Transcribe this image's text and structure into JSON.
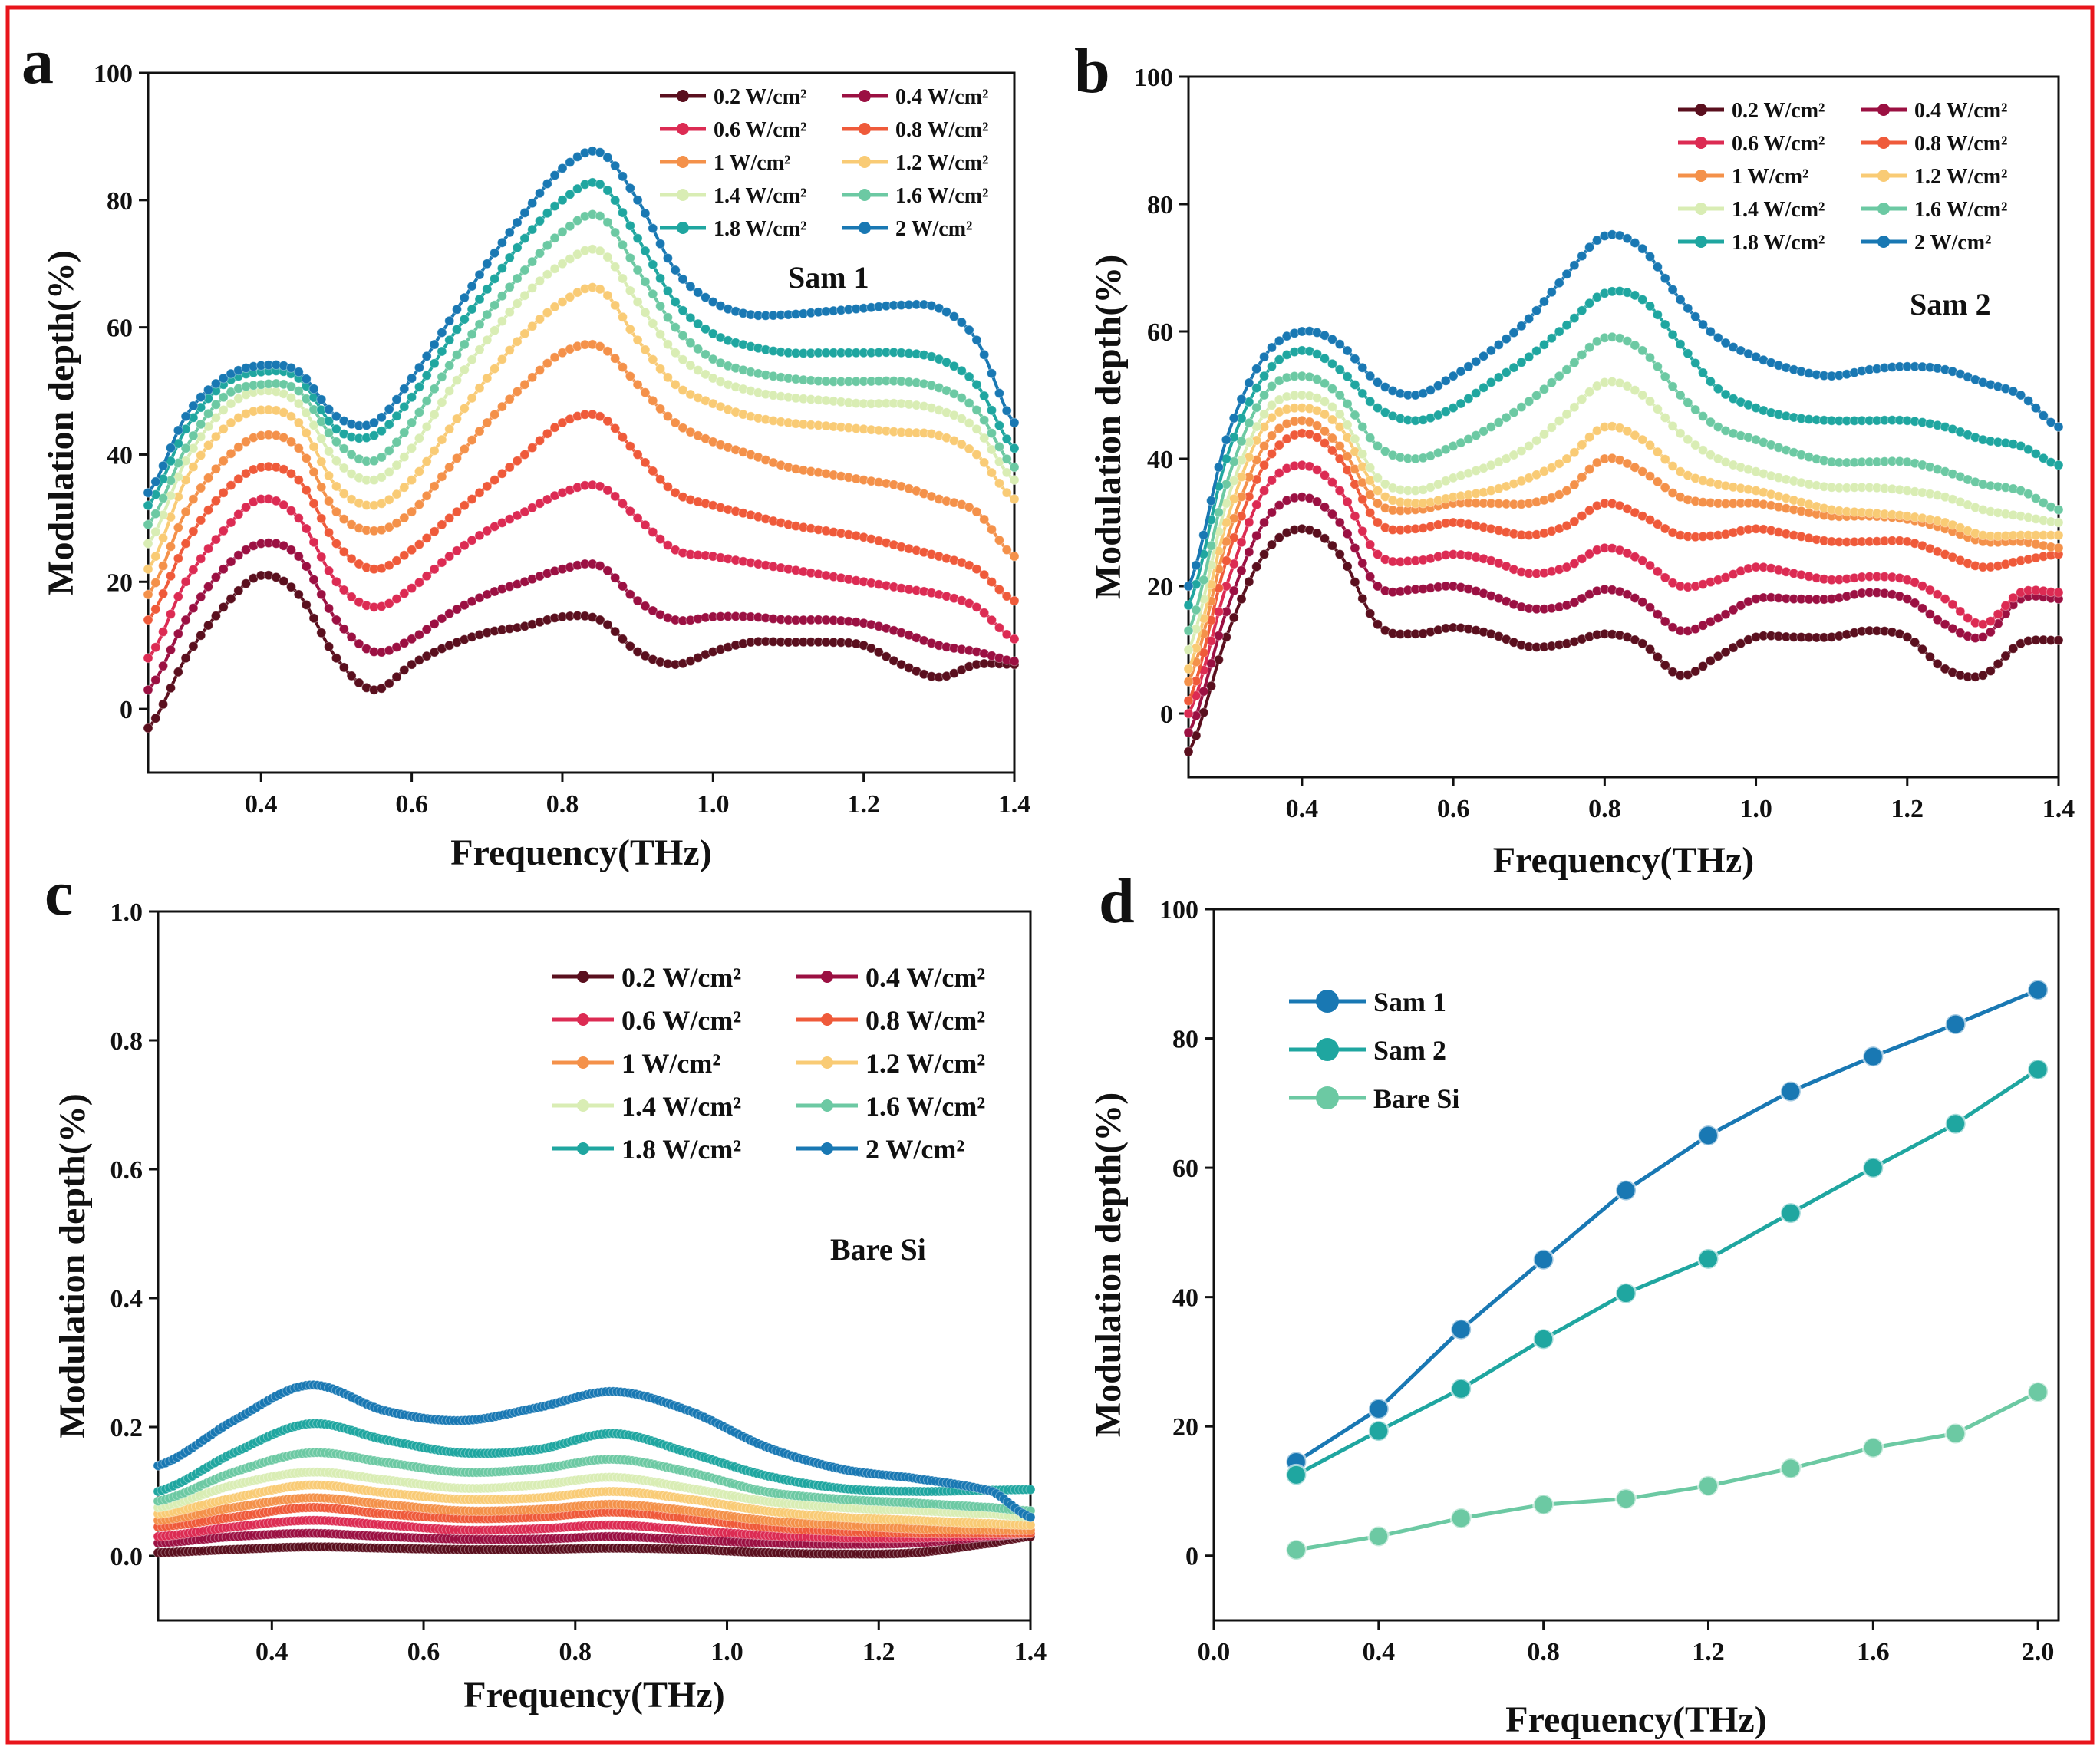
{
  "figure": {
    "border_color": "#e8141b"
  },
  "chart_data": [
    {
      "panel": "a",
      "type": "line",
      "annotation": "Sam 1",
      "xlabel": "Frequency(THz)",
      "ylabel": "Modulation depth(%)",
      "xlim": [
        0.25,
        1.4
      ],
      "ylim": [
        -10,
        100
      ],
      "xticks": [
        "0.4",
        "0.6",
        "0.8",
        "1.0",
        "1.2",
        "1.4"
      ],
      "yticks": [
        "0",
        "20",
        "40",
        "60",
        "80",
        "100"
      ],
      "legend": {
        "placement": "top-right",
        "columns": 2
      },
      "x_knots": [
        0.25,
        0.3,
        0.35,
        0.4,
        0.45,
        0.5,
        0.55,
        0.6,
        0.65,
        0.7,
        0.75,
        0.8,
        0.85,
        0.9,
        0.95,
        1.0,
        1.05,
        1.1,
        1.15,
        1.2,
        1.25,
        1.3,
        1.35,
        1.4
      ],
      "series": [
        {
          "name": "0.2 W/cm²",
          "color": "#5a0f1e",
          "values": [
            -3,
            8,
            16,
            21,
            18,
            8,
            3,
            7,
            10,
            12,
            13,
            14.5,
            14,
            9,
            7,
            9,
            10.5,
            10.5,
            10.5,
            10,
            7,
            5,
            7,
            7
          ]
        },
        {
          "name": "0.4 W/cm²",
          "color": "#9b1042",
          "values": [
            3,
            14,
            22,
            26,
            24,
            14,
            9,
            11,
            15,
            18,
            20,
            22,
            22.5,
            17,
            14,
            14.5,
            14.5,
            14,
            14,
            13.5,
            12,
            10,
            9,
            7.5
          ]
        },
        {
          "name": "0.6 W/cm²",
          "color": "#dc2b53",
          "values": [
            8,
            20,
            28,
            33,
            30,
            20,
            16,
            19,
            24,
            28,
            31,
            34,
            35,
            30,
            25,
            24,
            23,
            22,
            21,
            20,
            19,
            18,
            16,
            11
          ]
        },
        {
          "name": "0.8 W/cm²",
          "color": "#ef5a3a",
          "values": [
            14,
            26,
            34,
            38,
            36,
            26,
            22,
            25,
            30,
            35,
            40,
            45,
            46,
            40,
            34,
            32,
            30.5,
            29,
            28,
            27,
            25.5,
            24,
            22,
            17
          ]
        },
        {
          "name": "1 W/cm²",
          "color": "#f4914a",
          "values": [
            18,
            31,
            39,
            43,
            41,
            31,
            28,
            31,
            38,
            45,
            51,
            56,
            57,
            51,
            45,
            42,
            40,
            38,
            37,
            36,
            35,
            33,
            31,
            24
          ]
        },
        {
          "name": "1.2 W/cm²",
          "color": "#f9cb75",
          "values": [
            22,
            36,
            44,
            47,
            45,
            35,
            32,
            36,
            44,
            52,
            59,
            64,
            66,
            58,
            51,
            48,
            46,
            45,
            44.5,
            44,
            43.5,
            43,
            40,
            33
          ]
        },
        {
          "name": "1.4 W/cm²",
          "color": "#d9edb4",
          "values": [
            26,
            39,
            47,
            50,
            48,
            39,
            36,
            41,
            50,
            58,
            65,
            70,
            72,
            64,
            56,
            52,
            50,
            49,
            48.5,
            48,
            48,
            47,
            44,
            36
          ]
        },
        {
          "name": "1.6 W/cm²",
          "color": "#6cc9a3",
          "values": [
            29,
            41,
            49,
            51,
            50,
            42,
            39,
            45,
            54,
            62,
            69,
            75,
            77.5,
            69,
            60,
            55,
            53,
            52,
            51.5,
            51.5,
            51.5,
            50.5,
            47,
            38
          ]
        },
        {
          "name": "1.8 W/cm²",
          "color": "#1fa6a0",
          "values": [
            32,
            44,
            51,
            53,
            52,
            44,
            43,
            49,
            58,
            66,
            74,
            80,
            82.5,
            74,
            64,
            59,
            57,
            56,
            56,
            56,
            56,
            55,
            51,
            41
          ]
        },
        {
          "name": "2 W/cm²",
          "color": "#1978b3",
          "values": [
            34,
            46,
            52,
            54,
            53,
            46,
            45,
            52,
            61,
            70,
            78,
            85,
            87.5,
            80,
            69,
            64,
            62,
            62,
            62.5,
            63,
            63.5,
            63,
            58,
            45
          ]
        }
      ]
    },
    {
      "panel": "b",
      "type": "line",
      "annotation": "Sam 2",
      "xlabel": "Frequency(THz)",
      "ylabel": "Modulation depth(%)",
      "xlim": [
        0.25,
        1.4
      ],
      "ylim": [
        -10,
        100
      ],
      "xticks": [
        "0.4",
        "0.6",
        "0.8",
        "1.0",
        "1.2",
        "1.4"
      ],
      "yticks": [
        "0",
        "20",
        "40",
        "60",
        "80",
        "100"
      ],
      "legend": {
        "placement": "top-right",
        "columns": 2
      },
      "x_knots": [
        0.25,
        0.3,
        0.35,
        0.4,
        0.45,
        0.5,
        0.55,
        0.6,
        0.65,
        0.7,
        0.75,
        0.8,
        0.85,
        0.9,
        0.95,
        1.0,
        1.05,
        1.1,
        1.15,
        1.2,
        1.25,
        1.3,
        1.35,
        1.4
      ],
      "series": [
        {
          "name": "0.2 W/cm²",
          "color": "#5a0f1e",
          "values": [
            -6,
            12,
            25,
            29,
            25,
            14,
            12.5,
            13.5,
            12.5,
            10.5,
            11,
            12.5,
            11,
            6,
            9,
            12,
            12,
            12,
            13,
            12,
            7,
            6,
            11,
            11.5
          ]
        },
        {
          "name": "0.4 W/cm²",
          "color": "#9b1042",
          "values": [
            -3,
            16,
            30,
            34,
            30,
            20,
            19.5,
            20,
            18.5,
            16.5,
            17,
            19.5,
            17.5,
            13,
            15,
            18,
            18,
            18,
            19,
            18,
            14,
            12,
            18,
            18
          ]
        },
        {
          "name": "0.6 W/cm²",
          "color": "#dc2b53",
          "values": [
            0,
            20,
            35,
            39,
            35,
            25,
            24,
            25,
            24,
            22,
            23,
            26,
            24,
            20,
            21,
            23,
            22,
            21,
            21.5,
            21,
            18,
            14,
            19,
            19
          ]
        },
        {
          "name": "0.8 W/cm²",
          "color": "#ef5a3a",
          "values": [
            2,
            24,
            39,
            44,
            40,
            30,
            29,
            30,
            29,
            28,
            29.5,
            33,
            31,
            28,
            28,
            29,
            28,
            27,
            27,
            27,
            25,
            23,
            24,
            25
          ]
        },
        {
          "name": "1 W/cm²",
          "color": "#f4914a",
          "values": [
            5,
            27,
            42,
            46,
            42,
            33,
            32,
            33,
            33,
            33,
            35,
            40,
            38,
            34,
            33,
            33,
            32,
            31,
            31,
            30.5,
            29,
            27,
            27,
            26
          ]
        },
        {
          "name": "1.2 W/cm²",
          "color": "#f9cb75",
          "values": [
            7,
            30,
            45,
            48,
            45,
            35,
            33,
            34,
            35,
            37,
            40,
            45,
            43,
            38,
            36,
            35,
            33.5,
            32,
            31.5,
            31,
            30,
            28,
            28,
            28
          ]
        },
        {
          "name": "1.4 W/cm²",
          "color": "#d9edb4",
          "values": [
            10,
            33,
            47,
            50,
            47,
            37,
            35,
            37,
            39,
            42,
            47,
            52,
            50,
            44,
            40,
            38,
            36.5,
            35.5,
            35.5,
            35,
            34,
            32,
            31,
            30
          ]
        },
        {
          "name": "1.6 W/cm²",
          "color": "#6cc9a3",
          "values": [
            13,
            36,
            50,
            53,
            50,
            42,
            40,
            42,
            45,
            49,
            54,
            59,
            57,
            50,
            45,
            43,
            41,
            39.5,
            39.5,
            39.5,
            38,
            36,
            35,
            32
          ]
        },
        {
          "name": "1.8 W/cm²",
          "color": "#1fa6a0",
          "values": [
            17,
            40,
            53,
            57,
            54,
            48,
            46,
            48,
            52,
            56,
            61,
            66,
            65,
            58,
            51,
            48,
            46.5,
            46,
            46,
            46,
            45,
            43,
            42,
            39
          ]
        },
        {
          "name": "2 W/cm²",
          "color": "#1978b3",
          "values": [
            20,
            43,
            56,
            60,
            58,
            52,
            50,
            53,
            57,
            62,
            69,
            75,
            73,
            65,
            59,
            56,
            54,
            53,
            54,
            54.5,
            54,
            52,
            50,
            45
          ]
        }
      ]
    },
    {
      "panel": "c",
      "type": "line",
      "annotation": "Bare Si",
      "xlabel": "Frequency(THz)",
      "ylabel": "Modulation depth(%)",
      "xlim": [
        0.25,
        1.4
      ],
      "ylim": [
        -0.1,
        1.0
      ],
      "xticks": [
        "0.4",
        "0.6",
        "0.8",
        "1.0",
        "1.2",
        "1.4"
      ],
      "yticks": [
        "0.0",
        "0.2",
        "0.4",
        "0.6",
        "0.8",
        "1.0"
      ],
      "legend": {
        "placement": "top-right",
        "columns": 2
      },
      "x_knots": [
        0.25,
        0.35,
        0.45,
        0.55,
        0.65,
        0.75,
        0.85,
        0.95,
        1.05,
        1.15,
        1.25,
        1.35,
        1.4
      ],
      "series": [
        {
          "name": "0.2 W/cm²",
          "color": "#5a0f1e",
          "values": [
            0.005,
            0.01,
            0.014,
            0.012,
            0.01,
            0.01,
            0.012,
            0.01,
            0.005,
            0.003,
            0.005,
            0.02,
            0.03
          ]
        },
        {
          "name": "0.4 W/cm²",
          "color": "#9b1042",
          "values": [
            0.02,
            0.03,
            0.035,
            0.03,
            0.026,
            0.026,
            0.03,
            0.025,
            0.02,
            0.018,
            0.02,
            0.03,
            0.035
          ]
        },
        {
          "name": "0.6 W/cm²",
          "color": "#dc2b53",
          "values": [
            0.03,
            0.045,
            0.055,
            0.048,
            0.04,
            0.042,
            0.048,
            0.04,
            0.032,
            0.028,
            0.028,
            0.032,
            0.035
          ]
        },
        {
          "name": "0.8 W/cm²",
          "color": "#ef5a3a",
          "values": [
            0.045,
            0.06,
            0.075,
            0.065,
            0.058,
            0.06,
            0.068,
            0.058,
            0.045,
            0.038,
            0.035,
            0.035,
            0.035
          ]
        },
        {
          "name": "1 W/cm²",
          "color": "#f4914a",
          "values": [
            0.055,
            0.075,
            0.09,
            0.08,
            0.07,
            0.072,
            0.08,
            0.07,
            0.055,
            0.048,
            0.042,
            0.04,
            0.04
          ]
        },
        {
          "name": "1.2 W/cm²",
          "color": "#f9cb75",
          "values": [
            0.065,
            0.09,
            0.11,
            0.098,
            0.088,
            0.09,
            0.1,
            0.088,
            0.07,
            0.06,
            0.055,
            0.05,
            0.048
          ]
        },
        {
          "name": "1.4 W/cm²",
          "color": "#d9edb4",
          "values": [
            0.075,
            0.11,
            0.13,
            0.118,
            0.105,
            0.11,
            0.122,
            0.105,
            0.085,
            0.075,
            0.07,
            0.065,
            0.06
          ]
        },
        {
          "name": "1.6 W/cm²",
          "color": "#6cc9a3",
          "values": [
            0.085,
            0.13,
            0.16,
            0.145,
            0.13,
            0.135,
            0.15,
            0.13,
            0.1,
            0.088,
            0.082,
            0.075,
            0.07
          ]
        },
        {
          "name": "1.8 W/cm²",
          "color": "#1fa6a0",
          "values": [
            0.1,
            0.16,
            0.205,
            0.18,
            0.16,
            0.165,
            0.19,
            0.16,
            0.125,
            0.105,
            0.1,
            0.102,
            0.103
          ]
        },
        {
          "name": "2 W/cm²",
          "color": "#1978b3",
          "values": [
            0.14,
            0.21,
            0.265,
            0.225,
            0.21,
            0.23,
            0.255,
            0.225,
            0.17,
            0.135,
            0.12,
            0.1,
            0.06
          ]
        }
      ]
    },
    {
      "panel": "d",
      "type": "line",
      "xlabel": "Frequency(THz)",
      "ylabel": "Modulation depth(%)",
      "xlim": [
        0.0,
        2.05
      ],
      "ylim": [
        -10,
        100
      ],
      "xticks": [
        "0.0",
        "0.4",
        "0.8",
        "1.2",
        "1.6",
        "2.0"
      ],
      "yticks": [
        "0",
        "20",
        "40",
        "60",
        "80",
        "100"
      ],
      "legend": {
        "placement": "top-left",
        "columns": 1
      },
      "x": [
        0.2,
        0.4,
        0.6,
        0.8,
        1.0,
        1.2,
        1.4,
        1.6,
        1.8,
        2.0
      ],
      "series": [
        {
          "name": "Sam 1",
          "color": "#1978b3",
          "values": [
            14.5,
            22.7,
            35,
            45.8,
            56.5,
            65,
            71.8,
            77.2,
            82.2,
            87.5
          ]
        },
        {
          "name": "Sam 2",
          "color": "#1fa6a0",
          "values": [
            12.5,
            19.3,
            25.8,
            33.5,
            40.6,
            45.9,
            53,
            60,
            66.8,
            75.2
          ]
        },
        {
          "name": "Bare Si",
          "color": "#6cc9a3",
          "values": [
            0.9,
            3,
            5.8,
            7.9,
            8.8,
            10.8,
            13.5,
            16.7,
            18.9,
            25.3
          ]
        }
      ]
    }
  ]
}
